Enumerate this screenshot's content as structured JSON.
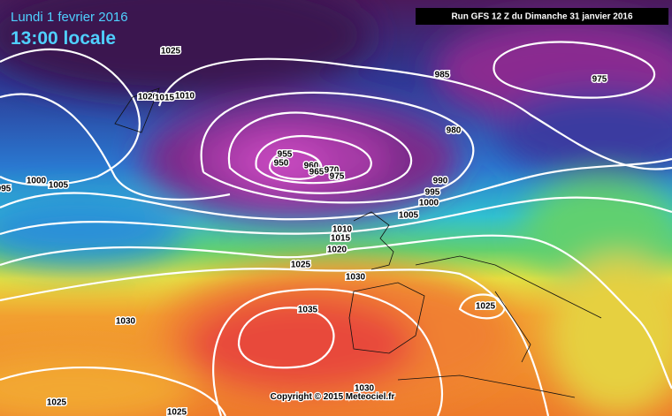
{
  "header": {
    "date": "Lundi 1 fevrier 2016",
    "time": "13:00 locale",
    "run": "Run GFS 12 Z du Dimanche 31 janvier 2016",
    "copyright": "Copyright © 2015 Meteociel.fr"
  },
  "isobar_labels": [
    "1025",
    "1020",
    "1015",
    "1010",
    "985",
    "975",
    "980",
    "955",
    "950",
    "960",
    "965",
    "970",
    "975",
    "990",
    "995",
    "1000",
    "1005",
    "1010",
    "1015",
    "1020",
    "1025",
    "1030",
    "1035",
    "1025",
    "1030",
    "1030",
    "1025",
    "1025",
    "1000",
    "1005",
    "995"
  ]
}
